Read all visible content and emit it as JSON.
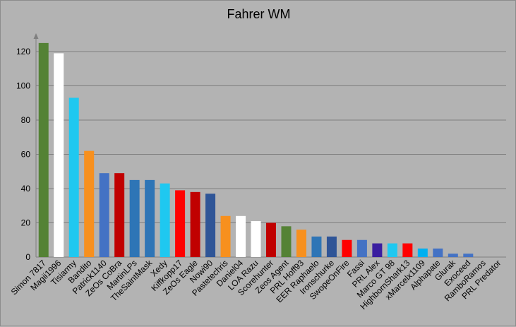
{
  "chart_data": {
    "type": "bar",
    "title": "Fahrer WM",
    "xlabel": "",
    "ylabel": "",
    "ylim": [
      0,
      120
    ],
    "yticks": [
      0,
      20,
      40,
      60,
      80,
      100,
      120
    ],
    "grid": true,
    "legend": "none",
    "categories": [
      "Simon 7817",
      "Magii1996",
      "Tisiarmy",
      "Bandito",
      "Patrick1140",
      "ZeOs CoBra",
      "MartinLPs",
      "TheSaintMask",
      "Xedy",
      "Kiffkopp17",
      "ZeOs Eagle",
      "Nowi90",
      "Pastetechris",
      "Daniel04",
      "LOA Razu",
      "Scorehunter",
      "Zeos Agent",
      "PRL Hoff93",
      "EER Raphaelo",
      "Ironschurke",
      "SwopeOnFire",
      "Fassi",
      "PRL Alex",
      "Marco GT 98",
      "HighbornShark13",
      "xMarcelx1109",
      "Alphapate",
      "Glurak",
      "Exoceed",
      "RamboRamos",
      "PRL Predator"
    ],
    "values": [
      125,
      119,
      93,
      62,
      49,
      49,
      45,
      45,
      43,
      39,
      38,
      37,
      24,
      24,
      21,
      20,
      18,
      16,
      12,
      12,
      10,
      10,
      8,
      8,
      8,
      5,
      5,
      2,
      2,
      0,
      0
    ],
    "colors": [
      "#548235",
      "#ffffff",
      "#1fc8f0",
      "#f7901e",
      "#4472c4",
      "#c00000",
      "#2e75b6",
      "#2e75b6",
      "#1fc8f0",
      "#ff0000",
      "#c00000",
      "#2f5597",
      "#f7901e",
      "#ffffff",
      "#ffffff",
      "#c00000",
      "#548235",
      "#f7901e",
      "#2e75b6",
      "#2f5597",
      "#ff0000",
      "#4472c4",
      "#3a1ea0",
      "#1fc8f0",
      "#ff0000",
      "#00b0f0",
      "#4472c4",
      "#4472c4",
      "#4472c4",
      "#4472c4",
      "#4472c4"
    ]
  }
}
